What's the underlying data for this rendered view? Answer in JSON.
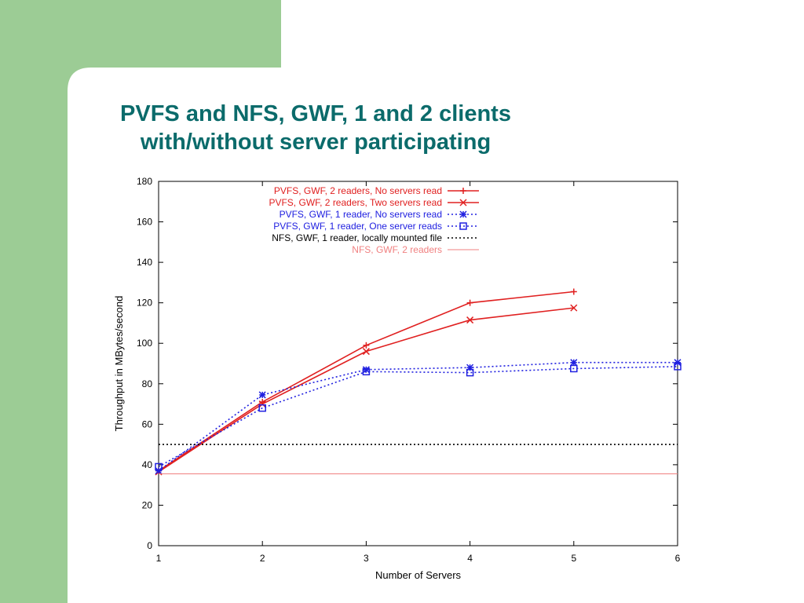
{
  "slide": {
    "title_line1": "PVFS and NFS, GWF, 1 and 2 clients",
    "title_line2": "with/without server participating",
    "colors": {
      "left_band": "#9ccc95",
      "title": "#0b6b6b",
      "background": "#ffffff"
    }
  },
  "chart_data": {
    "type": "line",
    "xlabel": "Number of Servers",
    "ylabel": "Throughput in MBytes/second",
    "xlim": [
      1,
      6
    ],
    "ylim": [
      0,
      180
    ],
    "xticks": [
      "1",
      "2",
      "3",
      "4",
      "5",
      "6"
    ],
    "yticks": [
      "0",
      "20",
      "40",
      "60",
      "80",
      "100",
      "120",
      "140",
      "160",
      "180"
    ],
    "grid": false,
    "legend_position": "top-right",
    "series": [
      {
        "name": "PVFS, GWF, 2 readers, No servers read",
        "color": "#e02020",
        "style": "solid",
        "marker": "plus",
        "x": [
          1,
          2,
          3,
          4,
          5
        ],
        "y": [
          37,
          71,
          99,
          120,
          125.5
        ]
      },
      {
        "name": "PVFS, GWF, 2 readers, Two servers read",
        "color": "#e02020",
        "style": "solid",
        "marker": "cross",
        "x": [
          1,
          2,
          3,
          4,
          5
        ],
        "y": [
          36.5,
          70,
          96,
          111.5,
          117.5
        ]
      },
      {
        "name": "PVFS, GWF, 1 reader, No servers read",
        "color": "#2020e0",
        "style": "dotted",
        "marker": "star",
        "x": [
          1,
          2,
          3,
          4,
          5,
          6
        ],
        "y": [
          37,
          74.5,
          87,
          88,
          90.5,
          90.5
        ]
      },
      {
        "name": "PVFS, GWF, 1 reader, One server reads",
        "color": "#2020e0",
        "style": "dotted",
        "marker": "square",
        "x": [
          1,
          2,
          3,
          4,
          5,
          6
        ],
        "y": [
          39,
          68,
          86,
          85.5,
          87.5,
          88.5
        ]
      },
      {
        "name": "NFS, GWF, 1 reader, locally mounted file",
        "color": "#000000",
        "style": "dotted",
        "marker": "none",
        "x": [
          1,
          6
        ],
        "y": [
          50,
          50
        ]
      },
      {
        "name": "NFS, GWF, 2 readers",
        "color": "#f08080",
        "style": "solid",
        "marker": "none",
        "x": [
          1,
          6
        ],
        "y": [
          35.5,
          35.5
        ]
      }
    ]
  }
}
